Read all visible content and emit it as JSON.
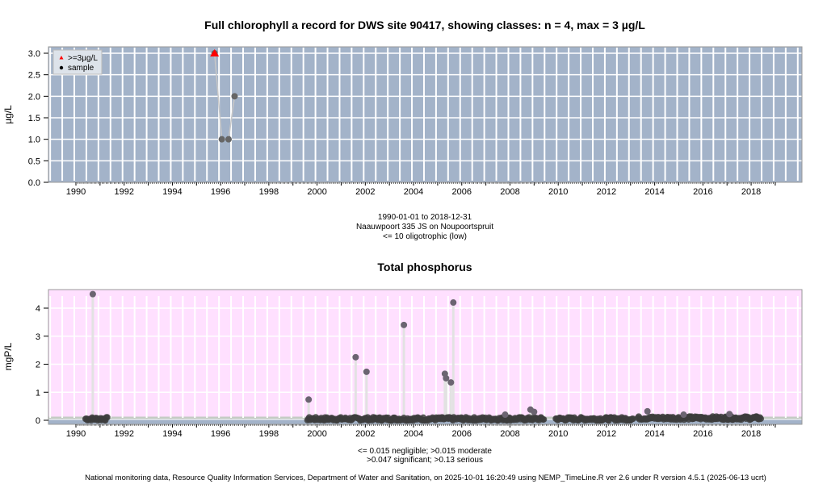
{
  "chart_data": [
    {
      "type": "scatter",
      "title": "Full chlorophyll a record for DWS site 90417, showing classes: n = 4, max = 3 µg/L",
      "xlabel": "",
      "ylabel": "µg/L",
      "xlim": [
        1988.9,
        2020.2
      ],
      "ylim": [
        0,
        3.1
      ],
      "x_ticks": [
        "1990",
        "1992",
        "1994",
        "1996",
        "1998",
        "2000",
        "2002",
        "2004",
        "2006",
        "2008",
        "2010",
        "2012",
        "2014",
        "2016",
        "2018"
      ],
      "y_ticks": [
        "0.0",
        "0.5",
        "1.0",
        "1.5",
        "2.0",
        "2.5",
        "3.0"
      ],
      "y_tick_values": [
        0,
        0.5,
        1.0,
        1.5,
        2.0,
        2.5,
        3.0
      ],
      "grid": true,
      "background_color": "#a3b3c9",
      "legend": {
        "placement": "top-left",
        "entries": [
          {
            "label": ">=3µg/L",
            "marker": "triangle",
            "color": "#ff0000"
          },
          {
            "label": "sample",
            "marker": "circle",
            "color": "#000000"
          }
        ]
      },
      "points": [
        {
          "x": 1995.75,
          "y": 3.0,
          "class": ">=3µg/L"
        },
        {
          "x": 1996.05,
          "y": 1.0,
          "class": "sample"
        },
        {
          "x": 1996.33,
          "y": 1.0,
          "class": "sample"
        },
        {
          "x": 1996.58,
          "y": 2.0,
          "class": "sample"
        }
      ],
      "notes": [
        "1990-01-01 to 2018-12-31",
        "Naauwpoort 335 JS on Noupoortspruit",
        "<= 10 oligotrophic (low)"
      ]
    },
    {
      "type": "scatter",
      "title": "Total phosphorus",
      "xlabel": "",
      "ylabel": "mgP/L",
      "xlim": [
        1988.9,
        2020.2
      ],
      "ylim": [
        -0.15,
        4.6
      ],
      "x_ticks": [
        "1990",
        "1992",
        "1994",
        "1996",
        "1998",
        "2000",
        "2002",
        "2004",
        "2006",
        "2008",
        "2010",
        "2012",
        "2014",
        "2016",
        "2018"
      ],
      "y_ticks": [
        "0",
        "1",
        "2",
        "3",
        "4"
      ],
      "y_tick_values": [
        0,
        1,
        2,
        3,
        4
      ],
      "grid": true,
      "background_color": "#ffe0ff",
      "class_bands": [
        {
          "label": "negligible",
          "max": 0.015,
          "color": "#a3b3c9"
        },
        {
          "label": "moderate",
          "max": 0.047,
          "color": "#a3b3c9"
        },
        {
          "label": "significant",
          "max": 0.13,
          "color": "#c4cbc4"
        },
        {
          "label": "serious",
          "max": null,
          "color": "#ffe0ff"
        }
      ],
      "peaks": [
        {
          "x": 1990.7,
          "y": 4.5
        },
        {
          "x": 1999.65,
          "y": 0.74
        },
        {
          "x": 2001.6,
          "y": 2.25
        },
        {
          "x": 2002.05,
          "y": 1.73
        },
        {
          "x": 2003.6,
          "y": 3.4
        },
        {
          "x": 2005.3,
          "y": 1.66
        },
        {
          "x": 2005.35,
          "y": 1.5
        },
        {
          "x": 2005.55,
          "y": 1.35
        },
        {
          "x": 2005.65,
          "y": 4.2
        },
        {
          "x": 2007.8,
          "y": 0.2
        },
        {
          "x": 2008.85,
          "y": 0.38
        },
        {
          "x": 2009.0,
          "y": 0.3
        },
        {
          "x": 2013.7,
          "y": 0.32
        },
        {
          "x": 2015.2,
          "y": 0.2
        },
        {
          "x": 2017.1,
          "y": 0.22
        }
      ],
      "baseline_segments": [
        {
          "start": 1990.4,
          "end": 1991.3,
          "level": 0.05
        },
        {
          "start": 1999.6,
          "end": 2009.4,
          "level": 0.05
        },
        {
          "start": 2009.9,
          "end": 2013.1,
          "level": 0.05
        },
        {
          "start": 2013.3,
          "end": 2018.4,
          "level": 0.08
        }
      ],
      "notes": [
        "<= 0.015 negligible; >0.015 moderate",
        ">0.047 significant; >0.13 serious"
      ]
    }
  ],
  "footer": "National monitoring data, Resource Quality Information Services, Department of Water and Sanitation, on 2025-10-01 16:20:49 using NEMP_TimeLine.R ver 2.6 under R version 4.5.1 (2025-06-13 ucrt)"
}
